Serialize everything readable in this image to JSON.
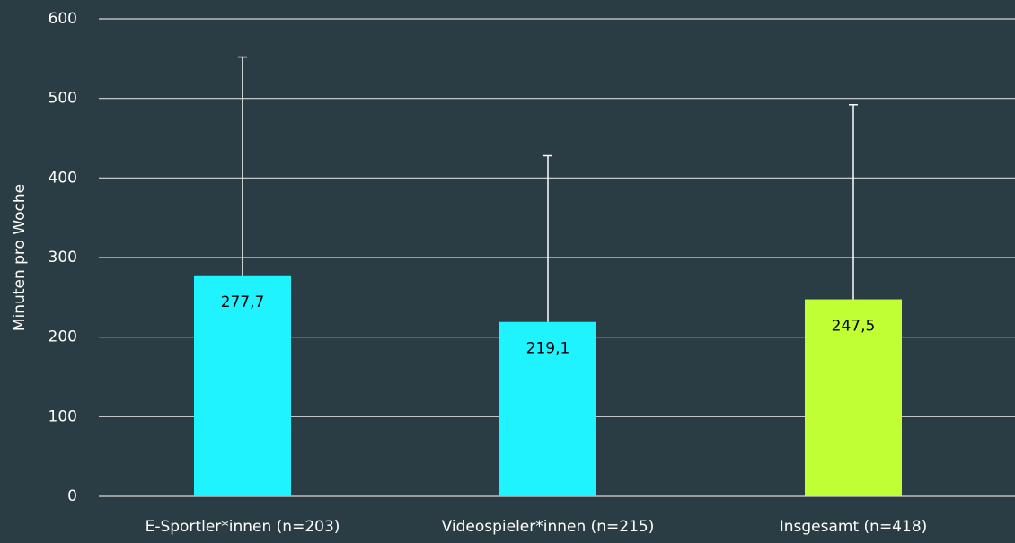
{
  "chart_data": {
    "type": "bar",
    "ylabel": "Minuten pro Woche",
    "categories": [
      "E-Sportler*innen (n=203)",
      "Videospieler*innen (n=215)",
      "Insgesamt (n=418)"
    ],
    "values": [
      277.7,
      219.1,
      247.5
    ],
    "value_labels": [
      "277,7",
      "219,1",
      "247,5"
    ],
    "errors": [
      274.3,
      208.9,
      244.5
    ],
    "colors": [
      "#1ef3ff",
      "#1ef3ff",
      "#c0ff33"
    ],
    "ylim": [
      0,
      600
    ],
    "yticks": [
      0,
      100,
      200,
      300,
      400,
      500,
      600
    ],
    "grid": true
  }
}
